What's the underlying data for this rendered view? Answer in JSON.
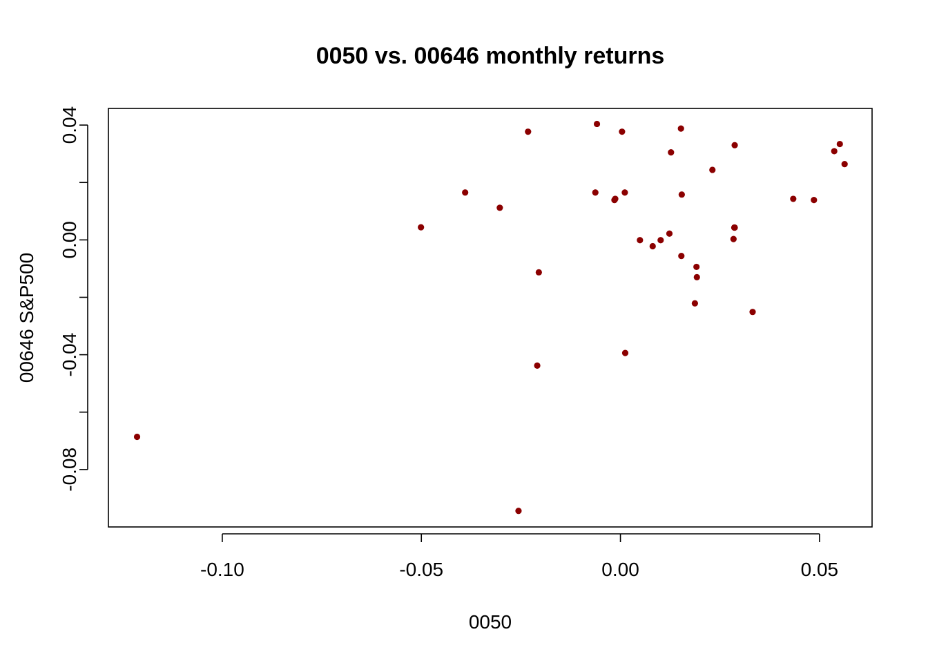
{
  "chart_data": {
    "type": "scatter",
    "title": "0050 vs. 00646 monthly returns",
    "xlabel": "0050",
    "ylabel": "00646 S&P500",
    "xlim": [
      -0.1286,
      0.0632
    ],
    "ylim": [
      -0.1,
      0.0458
    ],
    "x_ticks": [
      -0.1,
      -0.05,
      0.0,
      0.05
    ],
    "x_tick_labels": [
      "-0.10",
      "-0.05",
      "0.00",
      "0.05"
    ],
    "y_ticks": [
      -0.08,
      -0.06,
      -0.04,
      -0.02,
      0.0,
      0.02,
      0.04
    ],
    "y_tick_labels": [
      "-0.08",
      "",
      "-0.04",
      "",
      "0.00",
      "",
      "0.04"
    ],
    "point_color": "#8B0000",
    "grid": false,
    "x": [
      -0.1214,
      -0.0501,
      -0.039,
      -0.0303,
      -0.0232,
      -0.0256,
      -0.0205,
      -0.0209,
      -0.0063,
      -0.0059,
      -0.0015,
      -0.0013,
      0.0004,
      0.0011,
      0.0012,
      0.0049,
      0.0081,
      0.0101,
      0.0123,
      0.0127,
      0.0152,
      0.0153,
      0.0154,
      0.0187,
      0.0191,
      0.0192,
      0.0231,
      0.0284,
      0.0286,
      0.0287,
      0.0287,
      0.0332,
      0.0434,
      0.0486,
      0.0537,
      0.0551,
      0.0563
    ],
    "y": [
      -0.0686,
      0.0044,
      0.0165,
      0.0112,
      0.0377,
      -0.0944,
      -0.0113,
      -0.0438,
      0.0165,
      0.0404,
      0.0139,
      0.0143,
      0.0377,
      0.0165,
      -0.0394,
      -0.0001,
      -0.0022,
      -0.0001,
      0.0022,
      0.0305,
      0.0388,
      -0.0056,
      0.0158,
      -0.0221,
      -0.0094,
      -0.013,
      0.0244,
      0.0003,
      0.0043,
      0.033,
      0.0043,
      -0.0251,
      0.0143,
      0.0139,
      0.0309,
      0.0334,
      0.0264
    ]
  }
}
